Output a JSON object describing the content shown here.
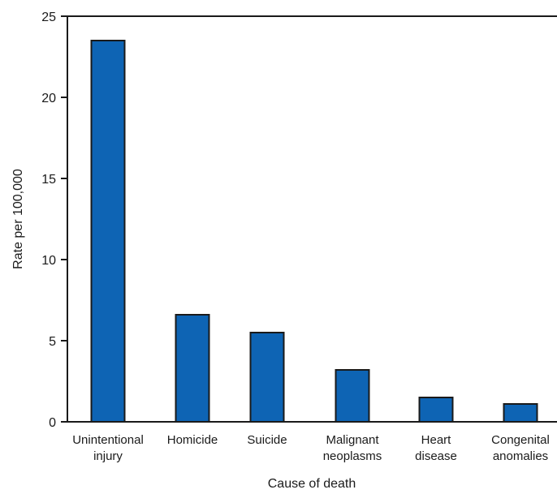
{
  "chart_data": {
    "type": "bar",
    "categories": [
      [
        "Unintentional",
        "injury"
      ],
      [
        "Homicide"
      ],
      [
        "Suicide"
      ],
      [
        "Malignant",
        "neoplasms"
      ],
      [
        "Heart",
        "disease"
      ],
      [
        "Congenital",
        "anomalies"
      ]
    ],
    "values": [
      23.5,
      6.6,
      5.5,
      3.2,
      1.5,
      1.1
    ],
    "xlabel": "Cause of death",
    "ylabel": "Rate per 100,000",
    "ylim": [
      0,
      25
    ],
    "yticks": [
      "0",
      "5",
      "10",
      "15",
      "20",
      "25"
    ],
    "grid": false,
    "legend": "none",
    "bar_color": "#0e64b4",
    "bar_edge_color": "#1a1a1a"
  }
}
